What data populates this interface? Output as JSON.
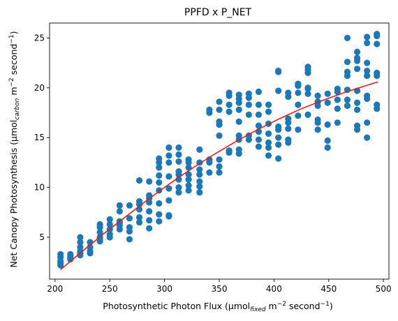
{
  "chart_data": {
    "type": "scatter",
    "title": "PPFD x P_NET",
    "xlabel": {
      "pre": "Photosynthetic Photon Flux (µmol",
      "sub": "fixed",
      "mid": " m",
      "sup1": "−2",
      "mid2": " second",
      "sup2": "−1",
      "post": ")"
    },
    "ylabel": {
      "pre": "Net Canopy Photosynthesis (µmol",
      "sub": "carbon",
      "mid": " m",
      "sup1": "−2",
      "mid2": " second",
      "sup2": "−1",
      "post": ")"
    },
    "xlim": [
      195,
      505
    ],
    "ylim": [
      0.8,
      26.5
    ],
    "xticks": [
      200,
      250,
      300,
      350,
      400,
      450,
      500
    ],
    "yticks": [
      5,
      10,
      15,
      20,
      25
    ],
    "grid": false,
    "legend": "none",
    "point_color": "#1f77b4",
    "line_color": "#e31a1c",
    "series": [
      {
        "kind": "points",
        "points": [
          [
            205,
            2.2
          ],
          [
            205,
            2.6
          ],
          [
            205,
            3.0
          ],
          [
            205,
            3.3
          ],
          [
            205,
            2.4
          ],
          [
            214,
            2.8
          ],
          [
            214,
            3.1
          ],
          [
            214,
            3.3
          ],
          [
            214,
            2.9
          ],
          [
            223,
            3.2
          ],
          [
            223,
            3.6
          ],
          [
            223,
            4.0
          ],
          [
            223,
            4.5
          ],
          [
            223,
            5.0
          ],
          [
            223,
            3.4
          ],
          [
            232,
            3.6
          ],
          [
            232,
            4.0
          ],
          [
            232,
            4.5
          ],
          [
            232,
            3.4
          ],
          [
            241,
            4.6
          ],
          [
            241,
            5.0
          ],
          [
            241,
            5.5
          ],
          [
            241,
            6.0
          ],
          [
            241,
            6.3
          ],
          [
            241,
            4.8
          ],
          [
            250,
            5.3
          ],
          [
            250,
            5.8
          ],
          [
            250,
            6.3
          ],
          [
            250,
            6.8
          ],
          [
            250,
            5.0
          ],
          [
            259,
            5.8
          ],
          [
            259,
            6.2
          ],
          [
            259,
            6.6
          ],
          [
            259,
            7.6
          ],
          [
            259,
            8.2
          ],
          [
            259,
            6.4
          ],
          [
            268,
            4.8
          ],
          [
            268,
            5.6
          ],
          [
            268,
            6.0
          ],
          [
            268,
            6.9
          ],
          [
            268,
            8.2
          ],
          [
            277,
            6.5
          ],
          [
            277,
            7.0
          ],
          [
            277,
            7.8
          ],
          [
            277,
            8.3
          ],
          [
            277,
            8.6
          ],
          [
            277,
            10.7
          ],
          [
            286,
            5.9
          ],
          [
            286,
            6.7
          ],
          [
            286,
            7.6
          ],
          [
            286,
            8.5
          ],
          [
            286,
            8.9
          ],
          [
            286,
            9.2
          ],
          [
            286,
            10.6
          ],
          [
            295,
            6.6
          ],
          [
            295,
            7.3
          ],
          [
            295,
            8.4
          ],
          [
            295,
            9.7
          ],
          [
            295,
            10.5
          ],
          [
            295,
            11.2
          ],
          [
            295,
            12.0
          ],
          [
            295,
            12.5
          ],
          [
            295,
            12.9
          ],
          [
            304,
            7.1
          ],
          [
            304,
            7.2
          ],
          [
            304,
            8.7
          ],
          [
            304,
            9.9
          ],
          [
            304,
            11.1
          ],
          [
            304,
            12.5
          ],
          [
            304,
            13.2
          ],
          [
            304,
            14.0
          ],
          [
            313,
            9.5
          ],
          [
            313,
            10.0
          ],
          [
            313,
            10.8
          ],
          [
            313,
            11.3
          ],
          [
            313,
            11.6
          ],
          [
            313,
            12.6
          ],
          [
            313,
            13.3
          ],
          [
            313,
            14.0
          ],
          [
            322,
            9.7
          ],
          [
            322,
            10.2
          ],
          [
            322,
            10.8
          ],
          [
            322,
            11.3
          ],
          [
            322,
            12.0
          ],
          [
            322,
            12.5
          ],
          [
            322,
            12.8
          ],
          [
            332,
            9.5
          ],
          [
            332,
            10.1
          ],
          [
            332,
            10.6
          ],
          [
            332,
            11.3
          ],
          [
            332,
            11.8
          ],
          [
            332,
            12.5
          ],
          [
            332,
            13.8
          ],
          [
            341,
            11.5
          ],
          [
            341,
            12.5
          ],
          [
            341,
            12.8
          ],
          [
            341,
            17.5
          ],
          [
            341,
            17.8
          ],
          [
            350,
            11.5
          ],
          [
            350,
            12.1
          ],
          [
            350,
            12.8
          ],
          [
            350,
            15.2
          ],
          [
            350,
            16.3
          ],
          [
            350,
            16.6
          ],
          [
            350,
            17.8
          ],
          [
            350,
            18.6
          ],
          [
            359,
            13.5
          ],
          [
            359,
            13.7
          ],
          [
            359,
            17.6
          ],
          [
            359,
            18.3
          ],
          [
            359,
            19.2
          ],
          [
            359,
            19.5
          ],
          [
            368,
            13.4
          ],
          [
            368,
            13.8
          ],
          [
            368,
            14.8
          ],
          [
            368,
            15.2
          ],
          [
            368,
            16.6
          ],
          [
            368,
            17.8
          ],
          [
            368,
            18.5
          ],
          [
            368,
            18.9
          ],
          [
            368,
            19.3
          ],
          [
            377,
            14.8
          ],
          [
            377,
            15.2
          ],
          [
            377,
            17.3
          ],
          [
            377,
            18.3
          ],
          [
            377,
            19.0
          ],
          [
            377,
            19.4
          ],
          [
            386,
            14.1
          ],
          [
            386,
            14.8
          ],
          [
            386,
            15.6
          ],
          [
            386,
            16.2
          ],
          [
            386,
            17.3
          ],
          [
            386,
            18.3
          ],
          [
            386,
            19.6
          ],
          [
            395,
            13.2
          ],
          [
            395,
            14.0
          ],
          [
            395,
            14.5
          ],
          [
            395,
            15.4
          ],
          [
            395,
            16.4
          ],
          [
            395,
            17.6
          ],
          [
            395,
            18.3
          ],
          [
            404,
            12.9
          ],
          [
            404,
            14.3
          ],
          [
            404,
            15.0
          ],
          [
            404,
            15.8
          ],
          [
            404,
            16.1
          ],
          [
            404,
            19.7
          ],
          [
            404,
            21.6
          ],
          [
            404,
            21.7
          ],
          [
            413,
            14.5
          ],
          [
            413,
            14.8
          ],
          [
            413,
            15.9
          ],
          [
            413,
            16.5
          ],
          [
            413,
            16.9
          ],
          [
            413,
            19.1
          ],
          [
            413,
            19.5
          ],
          [
            422,
            15.8
          ],
          [
            422,
            17.2
          ],
          [
            422,
            18.3
          ],
          [
            422,
            19.5
          ],
          [
            422,
            20.2
          ],
          [
            422,
            20.3
          ],
          [
            422,
            20.4
          ],
          [
            431,
            17.3
          ],
          [
            431,
            19.4
          ],
          [
            431,
            19.9
          ],
          [
            431,
            20.0
          ],
          [
            431,
            21.5
          ],
          [
            431,
            21.8
          ],
          [
            431,
            22.1
          ],
          [
            440,
            15.8
          ],
          [
            440,
            16.5
          ],
          [
            440,
            16.8
          ],
          [
            440,
            18.2
          ],
          [
            440,
            18.6
          ],
          [
            440,
            19.2
          ],
          [
            449,
            14.0
          ],
          [
            449,
            14.7
          ],
          [
            449,
            16.3
          ],
          [
            449,
            18.5
          ],
          [
            449,
            19.4
          ],
          [
            458,
            16.5
          ],
          [
            458,
            17.9
          ],
          [
            458,
            18.8
          ],
          [
            458,
            19.6
          ],
          [
            458,
            19.9
          ],
          [
            467,
            18.2
          ],
          [
            467,
            18.8
          ],
          [
            467,
            19.8
          ],
          [
            467,
            21.2
          ],
          [
            467,
            21.6
          ],
          [
            467,
            22.6
          ],
          [
            467,
            25.0
          ],
          [
            476,
            15.8
          ],
          [
            476,
            16.2
          ],
          [
            476,
            17.8
          ],
          [
            476,
            18.5
          ],
          [
            476,
            19.7
          ],
          [
            476,
            21.9
          ],
          [
            476,
            22.7
          ],
          [
            476,
            23.0
          ],
          [
            476,
            23.6
          ],
          [
            485,
            15.0
          ],
          [
            485,
            16.5
          ],
          [
            485,
            18.9
          ],
          [
            485,
            19.2
          ],
          [
            485,
            21.2
          ],
          [
            485,
            21.7
          ],
          [
            485,
            22.5
          ],
          [
            485,
            24.5
          ],
          [
            485,
            25.1
          ],
          [
            494,
            17.9
          ],
          [
            494,
            18.3
          ],
          [
            494,
            21.2
          ],
          [
            494,
            21.5
          ],
          [
            494,
            24.4
          ],
          [
            494,
            25.2
          ],
          [
            494,
            25.4
          ]
        ]
      },
      {
        "kind": "fit-line",
        "points": [
          [
            205,
            1.75
          ],
          [
            225,
            3.6
          ],
          [
            245,
            5.4
          ],
          [
            265,
            7.1
          ],
          [
            285,
            8.8
          ],
          [
            305,
            10.4
          ],
          [
            325,
            11.9
          ],
          [
            345,
            13.3
          ],
          [
            365,
            14.6
          ],
          [
            385,
            15.8
          ],
          [
            405,
            16.9
          ],
          [
            425,
            17.9
          ],
          [
            445,
            18.75
          ],
          [
            465,
            19.55
          ],
          [
            485,
            20.25
          ],
          [
            495,
            20.6
          ]
        ]
      }
    ]
  }
}
